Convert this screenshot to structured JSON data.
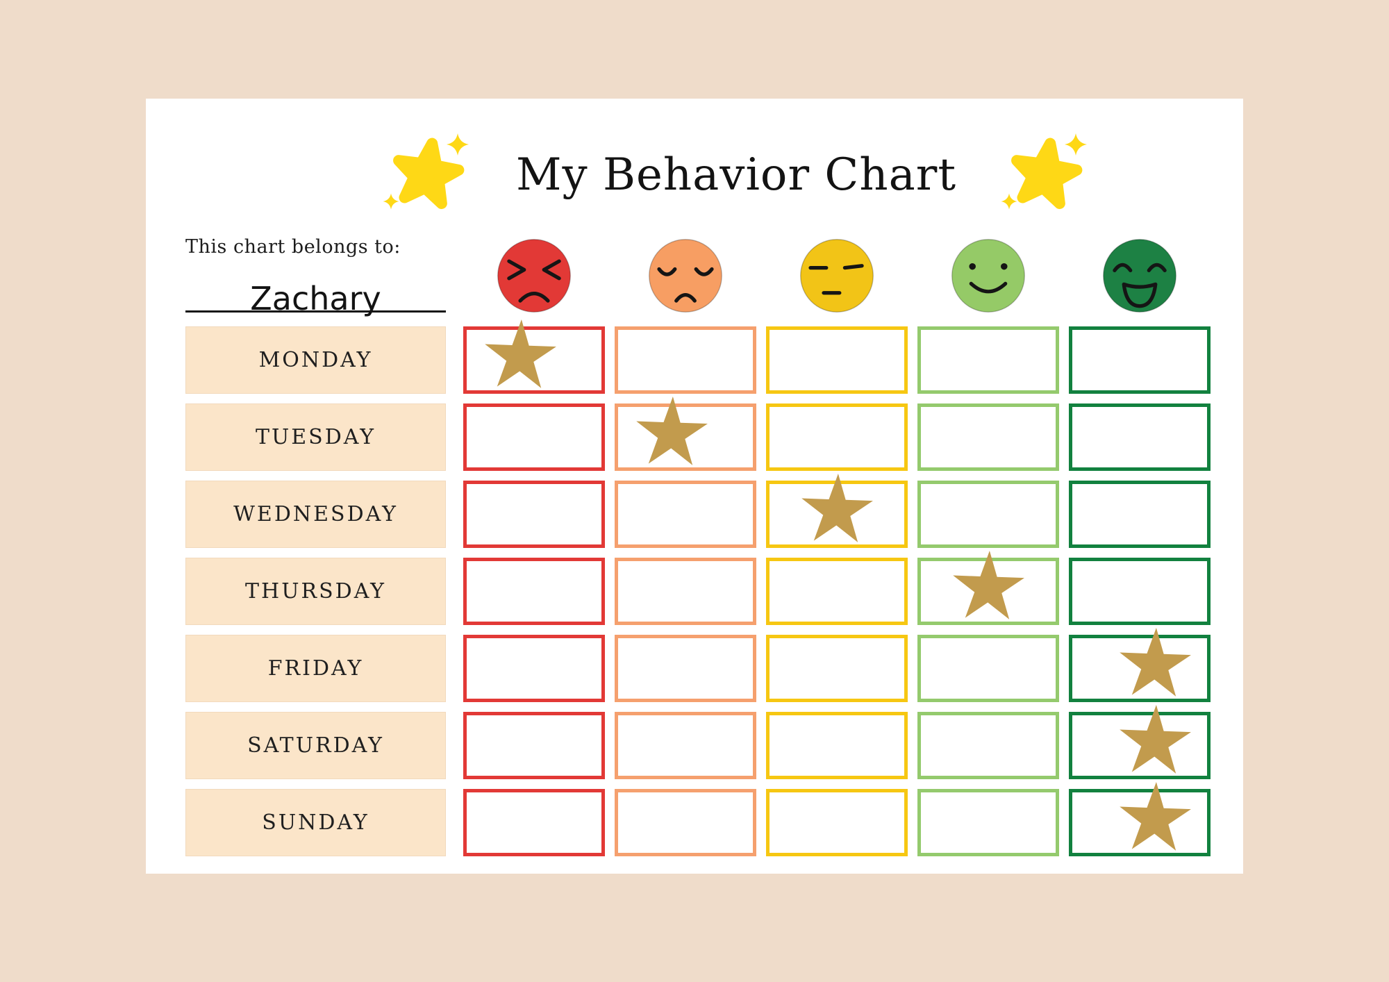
{
  "title": "My Behavior Chart",
  "belongs_to": {
    "label": "This chart belongs to:",
    "name": "Zachary"
  },
  "moods": [
    {
      "icon": "angry-face-icon",
      "expression": "angry",
      "face_color": "#e23936",
      "box_border_color": "#e23936"
    },
    {
      "icon": "sad-face-icon",
      "expression": "sad",
      "face_color": "#f79e63",
      "box_border_color": "#f5a06e"
    },
    {
      "icon": "neutral-face-icon",
      "expression": "neutral",
      "face_color": "#f2c417",
      "box_border_color": "#f6c712"
    },
    {
      "icon": "happy-face-icon",
      "expression": "happy",
      "face_color": "#95ca67",
      "box_border_color": "#94ca6d"
    },
    {
      "icon": "laughing-face-icon",
      "expression": "laughing",
      "face_color": "#1d8144",
      "box_border_color": "#12813f"
    }
  ],
  "days": [
    {
      "label": "MONDAY",
      "star_column": 1
    },
    {
      "label": "TUESDAY",
      "star_column": 2
    },
    {
      "label": "WEDNESDAY",
      "star_column": 3
    },
    {
      "label": "THURSDAY",
      "star_column": 4
    },
    {
      "label": "FRIDAY",
      "star_column": 5
    },
    {
      "label": "SATURDAY",
      "star_column": 5
    },
    {
      "label": "SUNDAY",
      "star_column": 5
    }
  ],
  "reward_star": {
    "icon": "gold-star-icon",
    "color": "#c29b4d"
  },
  "decor": {
    "icon": "sparkle-star-icon",
    "color": "#fed816"
  },
  "colors": {
    "background": "#efdcca",
    "card": "#ffffff",
    "day_label_bg": "#fbe5c9",
    "text": "#1c1c1c"
  }
}
